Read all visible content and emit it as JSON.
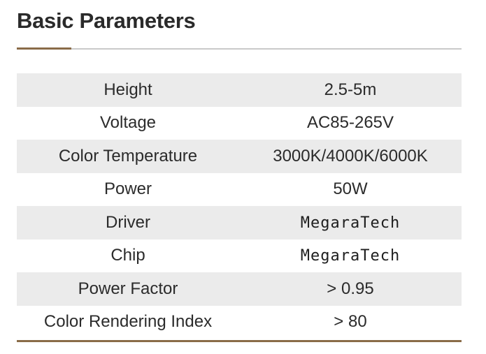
{
  "heading": "Basic Parameters",
  "colors": {
    "accent": "#8a6c48",
    "row_shade": "#ebebeb",
    "rule": "#c9c9c9"
  },
  "rows": [
    {
      "label": "Height",
      "value": "2.5-5m"
    },
    {
      "label": "Voltage",
      "value": "AC85-265V"
    },
    {
      "label": "Color Temperature",
      "value": "3000K/4000K/6000K"
    },
    {
      "label": "Power",
      "value": "50W"
    },
    {
      "label": "Driver",
      "value": "MegaraTech"
    },
    {
      "label": "Chip",
      "value": "MegaraTech"
    },
    {
      "label": "Power Factor",
      "value": "> 0.95"
    },
    {
      "label": "Color Rendering Index",
      "value": "> 80"
    }
  ]
}
